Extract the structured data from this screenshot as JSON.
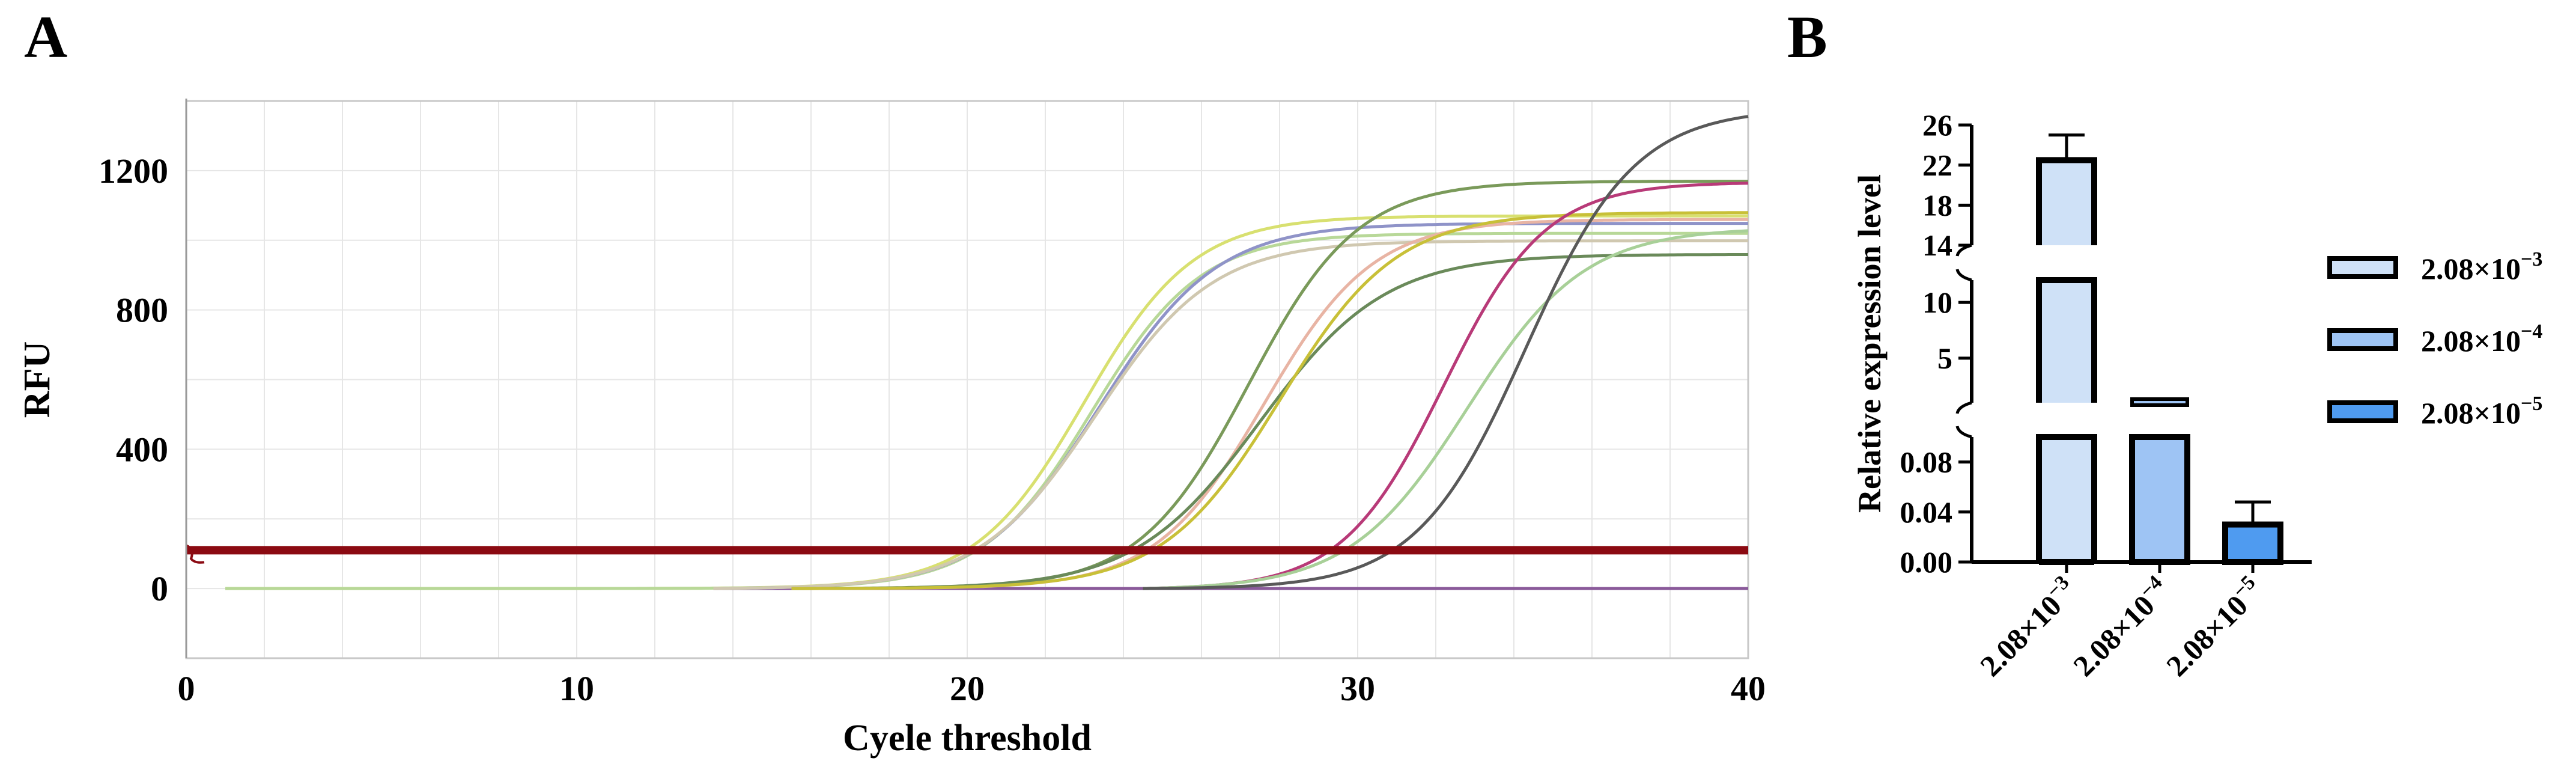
{
  "chart_data": [
    {
      "panel": "A",
      "type": "line",
      "xlabel": "Cyele threshold",
      "ylabel": "RFU",
      "xlim": [
        0,
        40
      ],
      "ylim": [
        -200,
        1400
      ],
      "xticks": [
        "0",
        "10",
        "20",
        "30",
        "40"
      ],
      "yticks": [
        "0",
        "400",
        "800",
        "1200"
      ],
      "ytick_values": [
        0,
        400,
        800,
        1200
      ],
      "grid": true,
      "threshold": 110,
      "threshold_color": "#8b0a12",
      "baseline_color": "#8a5a9a",
      "series": [
        {
          "color": "#d8e070",
          "values": {
            "plateau": 1070,
            "midpoint": 23.0,
            "slope": 1.4,
            "start": 1
          }
        },
        {
          "color": "#b8d898",
          "values": {
            "plateau": 1020,
            "midpoint": 23.2,
            "slope": 1.4,
            "start": 1
          }
        },
        {
          "color": "#8f93c8",
          "values": {
            "plateau": 1050,
            "midpoint": 23.4,
            "slope": 1.5,
            "start": 13.5
          }
        },
        {
          "color": "#d0c8b0",
          "values": {
            "plateau": 1000,
            "midpoint": 23.3,
            "slope": 1.5,
            "start": 13.5
          }
        },
        {
          "color": "#7a9a5a",
          "values": {
            "plateau": 1170,
            "midpoint": 27.2,
            "slope": 1.4,
            "start": 15.5
          }
        },
        {
          "color": "#e8b4a4",
          "values": {
            "plateau": 1060,
            "midpoint": 27.6,
            "slope": 1.4,
            "start": 15.5
          }
        },
        {
          "color": "#6a8a5a",
          "values": {
            "plateau": 960,
            "midpoint": 27.5,
            "slope": 1.6,
            "start": 15.5
          }
        },
        {
          "color": "#c8c038",
          "values": {
            "plateau": 1080,
            "midpoint": 28.0,
            "slope": 1.5,
            "start": 15.5
          }
        },
        {
          "color": "#b83a78",
          "values": {
            "plateau": 1170,
            "midpoint": 32.2,
            "slope": 1.3,
            "start": 24.5
          }
        },
        {
          "color": "#a8d098",
          "values": {
            "plateau": 1040,
            "midpoint": 32.8,
            "slope": 1.5,
            "start": 24.5
          }
        },
        {
          "color": "#595959",
          "values": {
            "plateau": 1380,
            "midpoint": 34.3,
            "slope": 1.4,
            "start": 24.5
          }
        }
      ]
    },
    {
      "panel": "B",
      "type": "bar",
      "ylabel": "Relative expression level",
      "categories": [
        "2.08×10",
        "2.08×10",
        "2.08×10"
      ],
      "category_exponents": [
        "−3",
        "−4",
        "−5"
      ],
      "values": [
        22.5,
        1.0,
        0.03
      ],
      "error": [
        2.5,
        0.0,
        0.018
      ],
      "colors": [
        "#cfe1f7",
        "#9ec4f4",
        "#4f9bf0"
      ],
      "axis_segments": [
        {
          "range": [
            0,
            0.1
          ],
          "ticks": [
            "0.00",
            "0.04",
            "0.08"
          ],
          "tick_values": [
            0,
            0.04,
            0.08
          ]
        },
        {
          "range": [
            1,
            12
          ],
          "ticks": [
            "5",
            "10"
          ],
          "tick_values": [
            5,
            10
          ]
        },
        {
          "range": [
            14,
            26
          ],
          "ticks": [
            "14",
            "18",
            "22",
            "26"
          ],
          "tick_values": [
            14,
            18,
            22,
            26
          ]
        }
      ],
      "legend": {
        "position": "right",
        "entries": [
          {
            "label": "2.08×10",
            "exponent": "−3"
          },
          {
            "label": "2.08×10",
            "exponent": "−4"
          },
          {
            "label": "2.08×10",
            "exponent": "−5"
          }
        ]
      }
    }
  ],
  "panels": {
    "a_letter": "A",
    "b_letter": "B"
  }
}
